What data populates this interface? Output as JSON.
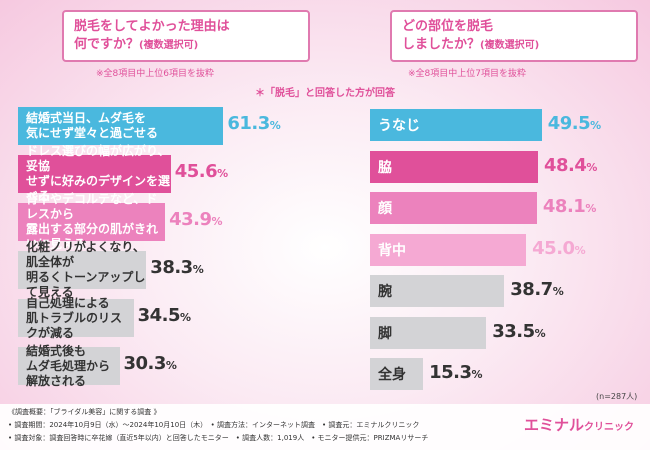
{
  "left_title": {
    "line1": "脱毛をしてよかった理由は",
    "line2": "何ですか？",
    "suffix": "(複数選択可)"
  },
  "left_note": "※全8項目中上位6項目を抜粋",
  "right_title": {
    "line1": "どの部位を脱毛",
    "line2": "しましたか？",
    "suffix": "(複数選択可)"
  },
  "right_note": "※全8項目中上位7項目を抜粋",
  "answer_note": "＊「脱毛」と回答した方が回答",
  "colors": {
    "blue": "#4ab8de",
    "magenta": "#e0509a",
    "pink": "#ec82bd",
    "light_pink": "#f5a9d3",
    "gray": "#d3d3d6",
    "text_dark": "#333333",
    "text_white": "#ffffff"
  },
  "chart_data": [
    {
      "type": "bar",
      "orientation": "horizontal",
      "categories": [
        "結婚式当日、ムダ毛を\n気にせず堂々と過ごせる",
        "ドレス選びの幅が広がり、妥協\nせずに好みのデザインを選べる",
        "背中やデコルテなど、ドレスから\n露出する部分の肌がきれいに見える",
        "化粧ノリがよくなり、肌全体が\n明るくトーンアップして見える",
        "自己処理による\n肌トラブルのリスクが減る",
        "結婚式後も\nムダ毛処理から解放される"
      ],
      "values": [
        61.3,
        45.6,
        43.9,
        38.3,
        34.5,
        30.3
      ],
      "value_labels": [
        "61.3",
        "45.6",
        "43.9",
        "38.3",
        "34.5",
        "30.3"
      ],
      "unit": "%"
    },
    {
      "type": "bar",
      "orientation": "horizontal",
      "categories": [
        "うなじ",
        "脇",
        "顔",
        "背中",
        "腕",
        "脚",
        "全身"
      ],
      "values": [
        49.5,
        48.4,
        48.1,
        45.0,
        38.7,
        33.5,
        15.3
      ],
      "value_labels": [
        "49.5",
        "48.4",
        "48.1",
        "45.0",
        "38.7",
        "33.5",
        "15.3"
      ],
      "unit": "%"
    }
  ],
  "sample_size": "(n=287人)",
  "footer": {
    "line1": "《調査概要：「ブライダル美容」に関する調査 》",
    "line2": "• 調査期間：2024年10月9日（水）〜2024年10月10日（木）　• 調査方法：インターネット調査　• 調査元：エミナルクリニック",
    "line3": "• 調査対象：調査回答時に卒花嫁（直近5年以内）と回答したモニター　• 調査人数：1,019人　• モニター提供元：PRIZMAリサーチ"
  },
  "logo": {
    "main": "エミナル",
    "sub": "クリニック"
  }
}
